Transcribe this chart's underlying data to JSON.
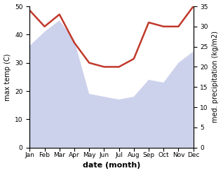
{
  "months": [
    "Jan",
    "Feb",
    "Mar",
    "Apr",
    "May",
    "Jun",
    "Jul",
    "Aug",
    "Sep",
    "Oct",
    "Nov",
    "Dec"
  ],
  "x": [
    0,
    1,
    2,
    3,
    4,
    5,
    6,
    7,
    8,
    9,
    10,
    11
  ],
  "temp_max": [
    36,
    41,
    45,
    38,
    19,
    18,
    17,
    18,
    24,
    23,
    30,
    34
  ],
  "precip": [
    34,
    30,
    33,
    26,
    21,
    20,
    20,
    22,
    31,
    30,
    30,
    35
  ],
  "temp_ylim": [
    0,
    50
  ],
  "precip_ylim": [
    0,
    35
  ],
  "line_color": "#c0392b",
  "area_facecolor": "#c5cae9",
  "area_alpha": 0.85,
  "ylabel_left": "max temp (C)",
  "ylabel_right": "med. precipitation (kg/m2)",
  "xlabel": "date (month)",
  "temp_yticks": [
    0,
    10,
    20,
    30,
    40,
    50
  ],
  "precip_yticks": [
    0,
    5,
    10,
    15,
    20,
    25,
    30,
    35
  ],
  "linewidth": 1.8,
  "label_fontsize": 7,
  "tick_fontsize": 6.5,
  "xlabel_fontsize": 8
}
